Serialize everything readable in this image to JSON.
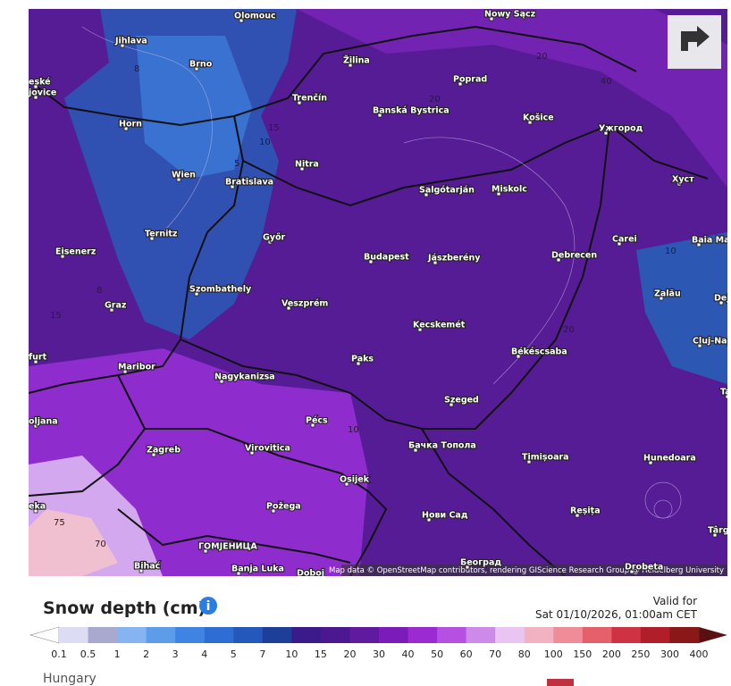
{
  "map": {
    "cities": [
      "Olomouc",
      "Nowy Sącz",
      "Jihlava",
      "Brno",
      "eské",
      "jovice",
      "Žilina",
      "Poprad",
      "Trenčín",
      "Banská Bystrica",
      "Košice",
      "Ужгород",
      "Horn",
      "Nitra",
      "Wien",
      "Bratislava",
      "Salgótarján",
      "Miskolc",
      "Хуст",
      "Ternitz",
      "Győr",
      "Carei",
      "Baia Mare",
      "Eisenerz",
      "Budapest",
      "Jászberény",
      "Debrecen",
      "Graz",
      "Szombathely",
      "Veszprém",
      "Zalău",
      "Dej",
      "Kecskemét",
      "Cluj-Napoca",
      "Békéscsaba",
      "Paks",
      "Maribor",
      "Nagykanizsa",
      "Szeged",
      "Pécs",
      "Бачка Топола",
      "Zagreb",
      "Virovitica",
      "Osijek",
      "Timișoara",
      "Hunedoara",
      "Požega",
      "Нови Сад",
      "Reșița",
      "Târgu Jiu",
      "ГОМЈЕНИЦА",
      "Banja Luka",
      "Bihać",
      "Doboj",
      "Београд",
      "Drobeta",
      "furt",
      "oljana",
      "eka",
      "Ta"
    ],
    "contour_labels": [
      "8",
      "15",
      "10",
      "5",
      "20",
      "40",
      "20",
      "8",
      "15",
      "10",
      "20",
      "10",
      "75",
      "70"
    ],
    "attribution": "Map data © OpenStreetMap contributors, rendering GIScience Research Group @ Heidelberg University"
  },
  "legend": {
    "title": "Snow depth (cm)",
    "valid_label": "Valid for",
    "valid_time": "Sat 01/10/2026, 01:00am CET",
    "scale": [
      0.1,
      0.5,
      1,
      2,
      3,
      4,
      5,
      7,
      10,
      15,
      20,
      30,
      40,
      50,
      60,
      70,
      80,
      100,
      150,
      200,
      250,
      300,
      400
    ],
    "colors": [
      "#dcdcf4",
      "#a9a9cf",
      "#86b4f2",
      "#5c9ce8",
      "#3f84e2",
      "#2e6dd4",
      "#2459bb",
      "#1d3f99",
      "#3b1a8c",
      "#4b1892",
      "#5f1aa0",
      "#7b1cba",
      "#9b2ad2",
      "#b650e2",
      "#cd8ae9",
      "#eac4f2",
      "#f2b2c2",
      "#f08c98",
      "#e6606c",
      "#cf3242",
      "#b01e2a",
      "#8a1818"
    ],
    "under_color": "#ffffff",
    "over_color": "#5a1010"
  },
  "region": "Hungary"
}
